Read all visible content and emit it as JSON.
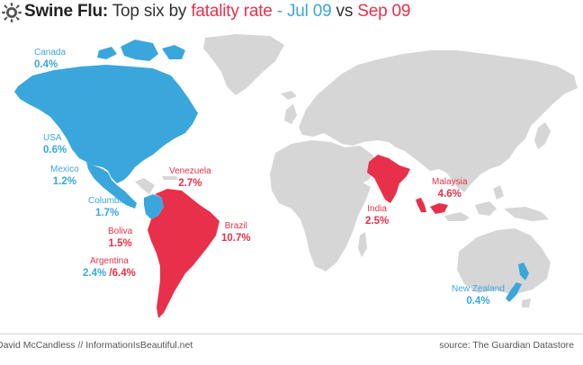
{
  "header": {
    "title_bold": "Swine Flu:",
    "title_mid": " Top six by ",
    "title_metric": "fatality rate",
    "title_dash": " - ",
    "title_jul": "Jul 09",
    "title_vs": " vs ",
    "title_sep": "Sep 09"
  },
  "colors": {
    "jul": "#3aa7dc",
    "sep": "#e8304a",
    "land": "#d6d6d6"
  },
  "countries": {
    "canada": {
      "name": "Canada",
      "rate": "0.4%"
    },
    "usa": {
      "name": "USA",
      "rate": "0.6%"
    },
    "mexico": {
      "name": "Mexico",
      "rate": "1.2%"
    },
    "columbia": {
      "name": "Columbia",
      "rate": "1.7%"
    },
    "venezuela": {
      "name": "Venezuela",
      "rate": "2.7%"
    },
    "bolivia": {
      "name": "Boliva",
      "rate": "1.5%"
    },
    "argentina": {
      "name": "Argentina",
      "rate_jul": "2.4%",
      "rate_sep": " /6.4%"
    },
    "brazil": {
      "name": "Brazil",
      "rate": "10.7%"
    },
    "india": {
      "name": "India",
      "rate": "2.5%"
    },
    "malaysia": {
      "name": "Malaysia",
      "rate": "4.6%"
    },
    "new_zealand": {
      "name": "New Zealand",
      "rate": "0.4%"
    }
  },
  "footer": {
    "credit": "David McCandless // InformationIsBeautiful.net",
    "source": "source: The Guardian Datastore"
  }
}
